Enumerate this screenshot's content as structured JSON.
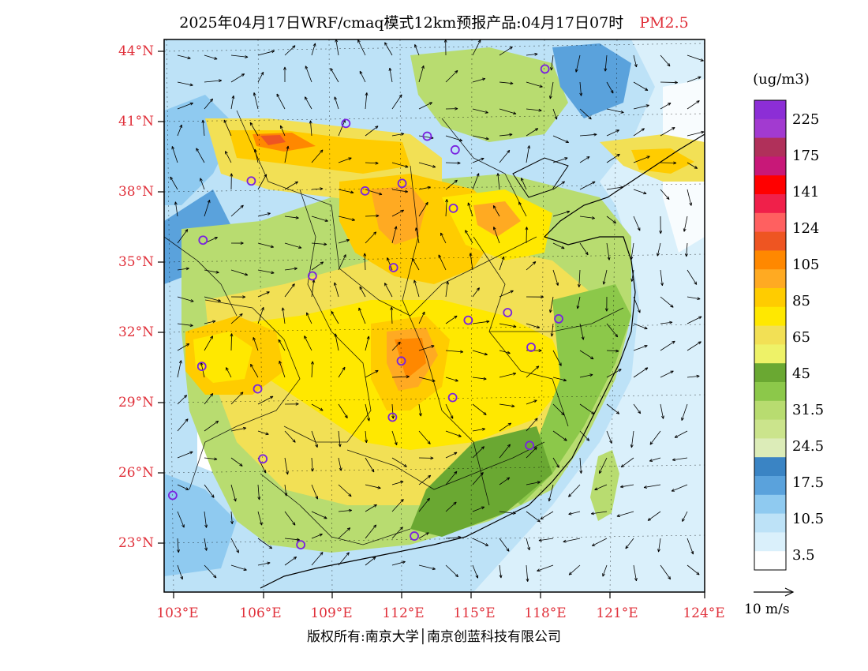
{
  "title": {
    "main": "2025年04月17日WRF/cmaq模式12km预报产品:04月17日07时",
    "variable": "PM2.5"
  },
  "axes": {
    "lat_ticks": [
      "44°N",
      "41°N",
      "38°N",
      "35°N",
      "32°N",
      "29°N",
      "26°N",
      "23°N"
    ],
    "lon_ticks": [
      "103°E",
      "106°E",
      "109°E",
      "112°E",
      "115°E",
      "118°E",
      "121°E",
      "124°E"
    ]
  },
  "legend": {
    "unit": "(ug/m3)",
    "labels": [
      "225",
      "175",
      "141",
      "124",
      "105",
      "85",
      "65",
      "45",
      "31.5",
      "24.5",
      "17.5",
      "10.5",
      "3.5"
    ],
    "colors_top_to_bottom": [
      "#8c2ed6",
      "#a23ad0",
      "#b0305a",
      "#c81878",
      "#ff0000",
      "#f0204a",
      "#ff6060",
      "#ee5522",
      "#ff8800",
      "#ffaa22",
      "#ffcc00",
      "#ffe800",
      "#f2e055",
      "#eef268",
      "#6aa832",
      "#8cc84a",
      "#b8dc70",
      "#cbe48c",
      "#dcecb8",
      "#3a84c4",
      "#5aa2dc",
      "#8fcaf0",
      "#bde2f7",
      "#daf0fb",
      "#ffffff"
    ]
  },
  "vector_scale": {
    "label": "10 m/s"
  },
  "copyright": "版权所有:南京大学│南京创蓝科技有限公司",
  "stations": [
    {
      "lon": 119.0,
      "lat": 43.0
    },
    {
      "lon": 110.4,
      "lat": 40.8
    },
    {
      "lon": 113.9,
      "lat": 40.2
    },
    {
      "lon": 115.1,
      "lat": 39.6
    },
    {
      "lon": 106.3,
      "lat": 38.4
    },
    {
      "lon": 111.2,
      "lat": 37.9
    },
    {
      "lon": 112.8,
      "lat": 38.2
    },
    {
      "lon": 115.0,
      "lat": 37.1
    },
    {
      "lon": 104.2,
      "lat": 35.9
    },
    {
      "lon": 108.9,
      "lat": 34.3
    },
    {
      "lon": 112.4,
      "lat": 34.6
    },
    {
      "lon": 115.6,
      "lat": 32.3
    },
    {
      "lon": 117.3,
      "lat": 32.6
    },
    {
      "lon": 119.5,
      "lat": 32.3
    },
    {
      "lon": 118.3,
      "lat": 31.1
    },
    {
      "lon": 104.1,
      "lat": 30.5
    },
    {
      "lon": 106.5,
      "lat": 29.5
    },
    {
      "lon": 112.7,
      "lat": 30.6
    },
    {
      "lon": 114.9,
      "lat": 29.0
    },
    {
      "lon": 112.3,
      "lat": 28.2
    },
    {
      "lon": 118.2,
      "lat": 26.9
    },
    {
      "lon": 106.7,
      "lat": 26.5
    },
    {
      "lon": 102.8,
      "lat": 25.0
    },
    {
      "lon": 108.3,
      "lat": 22.8
    },
    {
      "lon": 113.2,
      "lat": 23.1
    }
  ]
}
